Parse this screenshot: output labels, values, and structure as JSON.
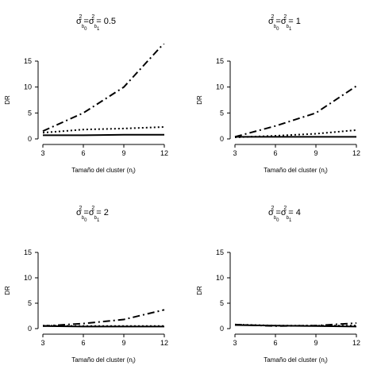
{
  "chart_data": [
    {
      "type": "line",
      "title": {
        "var1": "σ",
        "sub1": "b",
        "subsub1": "0",
        "eq": "=",
        "var2": "σ",
        "sub2": "b",
        "subsub2": "1",
        "sup": "2",
        "value": "0.5"
      },
      "xlabel": "Tamaño del cluster (n",
      "xlabel_sub": "i",
      "xlabel_close": ")",
      "ylabel": "DR",
      "xlim": [
        3,
        12
      ],
      "ylim": [
        0,
        15
      ],
      "xticks": [
        "3",
        "6",
        "9",
        "12"
      ],
      "yticks": [
        "0",
        "5",
        "10",
        "15"
      ],
      "series": [
        {
          "style": "solid",
          "x": [
            3,
            6,
            9,
            12
          ],
          "y": [
            0.7,
            0.7,
            0.8,
            0.8
          ]
        },
        {
          "style": "dotted",
          "x": [
            3,
            6,
            9,
            12
          ],
          "y": [
            1.2,
            1.8,
            2.0,
            2.3
          ]
        },
        {
          "style": "dashdot",
          "x": [
            3,
            6,
            9,
            12
          ],
          "y": [
            1.5,
            5.0,
            10.0,
            18.5
          ]
        }
      ]
    },
    {
      "type": "line",
      "title": {
        "var1": "σ",
        "sub1": "b",
        "subsub1": "0",
        "eq": "=",
        "var2": "σ",
        "sub2": "b",
        "subsub2": "1",
        "sup": "2",
        "value": "1"
      },
      "xlabel": "Tamaño del cluster (n",
      "xlabel_sub": "i",
      "xlabel_close": ")",
      "ylabel": "DR",
      "xlim": [
        3,
        12
      ],
      "ylim": [
        0,
        15
      ],
      "xticks": [
        "3",
        "6",
        "9",
        "12"
      ],
      "yticks": [
        "0",
        "5",
        "10",
        "15"
      ],
      "series": [
        {
          "style": "solid",
          "x": [
            3,
            6,
            9,
            12
          ],
          "y": [
            0.4,
            0.4,
            0.4,
            0.4
          ]
        },
        {
          "style": "dotted",
          "x": [
            3,
            6,
            9,
            12
          ],
          "y": [
            0.3,
            0.6,
            1.0,
            1.7
          ]
        },
        {
          "style": "dashdot",
          "x": [
            3,
            6,
            9,
            12
          ],
          "y": [
            0.4,
            2.5,
            5.0,
            10.2
          ]
        }
      ]
    },
    {
      "type": "line",
      "title": {
        "var1": "σ",
        "sub1": "b",
        "subsub1": "0",
        "eq": "=",
        "var2": "σ",
        "sub2": "b",
        "subsub2": "1",
        "sup": "2",
        "value": "2"
      },
      "xlabel": "Tamaño del cluster (n",
      "xlabel_sub": "i",
      "xlabel_close": ")",
      "ylabel": "DR",
      "xlim": [
        3,
        12
      ],
      "ylim": [
        0,
        15
      ],
      "xticks": [
        "3",
        "6",
        "9",
        "12"
      ],
      "yticks": [
        "0",
        "5",
        "10",
        "15"
      ],
      "series": [
        {
          "style": "solid",
          "x": [
            3,
            6,
            9,
            12
          ],
          "y": [
            0.5,
            0.4,
            0.4,
            0.4
          ]
        },
        {
          "style": "dotted",
          "x": [
            3,
            6,
            9,
            12
          ],
          "y": [
            0.6,
            0.5,
            0.5,
            0.5
          ]
        },
        {
          "style": "dashdot",
          "x": [
            3,
            6,
            9,
            12
          ],
          "y": [
            0.5,
            1.0,
            1.8,
            3.7
          ]
        }
      ]
    },
    {
      "type": "line",
      "title": {
        "var1": "σ",
        "sub1": "b",
        "subsub1": "0",
        "eq": "=",
        "var2": "σ",
        "sub2": "b",
        "subsub2": "1",
        "sup": "2",
        "value": "4"
      },
      "xlabel": "Tamaño del cluster (n",
      "xlabel_sub": "i",
      "xlabel_close": ")",
      "ylabel": "DR",
      "xlim": [
        3,
        12
      ],
      "ylim": [
        0,
        15
      ],
      "xticks": [
        "3",
        "6",
        "9",
        "12"
      ],
      "yticks": [
        "0",
        "5",
        "10",
        "15"
      ],
      "series": [
        {
          "style": "solid",
          "x": [
            3,
            6,
            9,
            12
          ],
          "y": [
            0.7,
            0.6,
            0.5,
            0.4
          ]
        },
        {
          "style": "dotted",
          "x": [
            3,
            6,
            9,
            12
          ],
          "y": [
            0.8,
            0.6,
            0.6,
            0.6
          ]
        },
        {
          "style": "dashdot",
          "x": [
            3,
            6,
            9,
            12
          ],
          "y": [
            0.8,
            0.5,
            0.6,
            1.1
          ]
        }
      ]
    }
  ]
}
